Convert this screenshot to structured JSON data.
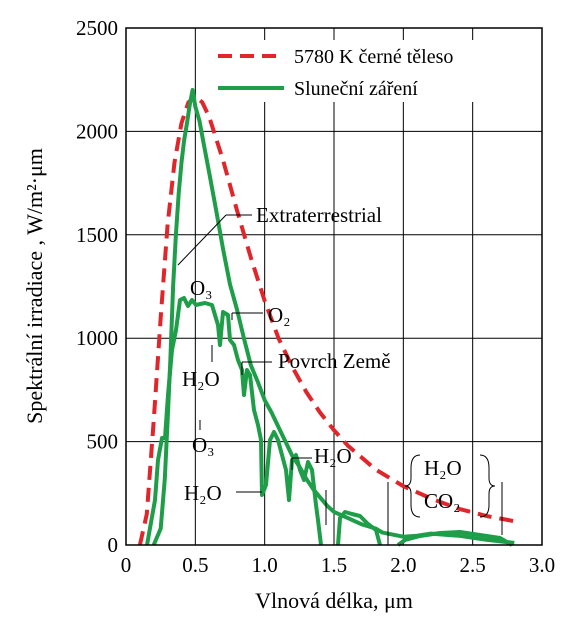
{
  "chart_data": {
    "type": "line",
    "title": "",
    "xlabel": "Vlnová délka, μm",
    "ylabel": "Spektrální irradiace , W/m²·μm",
    "xlim": [
      0,
      3.0
    ],
    "ylim": [
      0,
      2500
    ],
    "x_ticks": [
      "0",
      "0.5",
      "1.0",
      "1.5",
      "2.0",
      "2.5",
      "3.0"
    ],
    "y_ticks": [
      "0",
      "500",
      "1000",
      "1500",
      "2000",
      "2500"
    ],
    "grid": true,
    "legend_position": "top-right",
    "series": [
      {
        "name": "5780 K černé těleso",
        "style": "dashed",
        "color": "#e0262b",
        "x": [
          0.1,
          0.15,
          0.2,
          0.25,
          0.3,
          0.35,
          0.4,
          0.45,
          0.5,
          0.55,
          0.6,
          0.7,
          0.8,
          0.9,
          1.0,
          1.1,
          1.2,
          1.3,
          1.4,
          1.5,
          1.6,
          1.8,
          2.0,
          2.2,
          2.4,
          2.6,
          2.8
        ],
        "y": [
          0,
          150,
          600,
          1100,
          1550,
          1850,
          2040,
          2140,
          2170,
          2140,
          2070,
          1860,
          1620,
          1390,
          1180,
          1000,
          860,
          740,
          640,
          555,
          480,
          365,
          285,
          225,
          175,
          140,
          115
        ]
      },
      {
        "name": "Sluneční záření",
        "style": "solid",
        "color": "#1f9e49",
        "x": [
          0.2,
          0.25,
          0.28,
          0.3,
          0.32,
          0.34,
          0.36,
          0.38,
          0.4,
          0.42,
          0.44,
          0.46,
          0.48,
          0.5,
          0.53,
          0.56,
          0.6,
          0.65,
          0.7,
          0.75,
          0.8,
          0.85,
          0.9,
          0.95,
          1.0,
          1.05,
          1.1,
          1.15,
          1.2,
          1.25,
          1.3,
          1.35,
          1.4,
          1.45,
          1.5,
          1.6,
          1.7,
          1.8,
          1.85,
          2.0,
          2.1,
          2.2,
          2.3,
          2.4,
          2.5,
          2.6,
          2.8
        ],
        "y": [
          0,
          80,
          320,
          600,
          900,
          1250,
          1500,
          1700,
          1850,
          1960,
          2040,
          2130,
          2200,
          2120,
          2050,
          1940,
          1800,
          1620,
          1430,
          1260,
          1140,
          1000,
          870,
          790,
          700,
          640,
          570,
          500,
          430,
          380,
          320,
          270,
          230,
          190,
          160,
          130,
          100,
          80,
          60,
          40,
          45,
          55,
          50,
          45,
          35,
          25,
          10
        ]
      }
    ],
    "annotations": [
      {
        "text": "Extraterrestrial"
      },
      {
        "text": "O₃"
      },
      {
        "text": "O₂"
      },
      {
        "text": "H₂O"
      },
      {
        "text": "Povrch Země"
      },
      {
        "text": "H₂O"
      },
      {
        "text": "O₃"
      },
      {
        "text": "H₂O"
      },
      {
        "text": "H₂O"
      },
      {
        "text": "H₂O"
      },
      {
        "text": "CO₂"
      }
    ]
  }
}
